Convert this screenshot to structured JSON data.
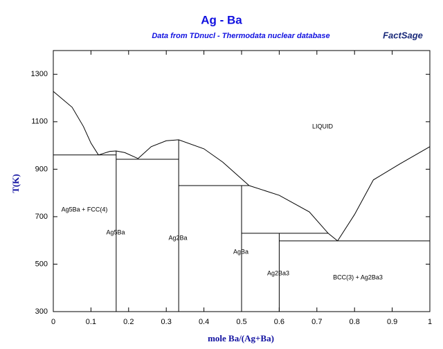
{
  "chart_data": {
    "type": "line",
    "title": "Ag - Ba",
    "subtitle": "Data from TDnucl - Thermodata nuclear database",
    "logo": "FactSage",
    "x_label": "mole Ba/(Ag+Ba)",
    "y_label": "T(K)",
    "xlim": [
      0,
      1
    ],
    "ylim": [
      300,
      1400
    ],
    "xticks": [
      0,
      0.1,
      0.2,
      0.3,
      0.4,
      0.5,
      0.6,
      0.7,
      0.8,
      0.9,
      1
    ],
    "yticks": [
      300,
      500,
      700,
      900,
      1100,
      1300
    ],
    "series": [
      {
        "color": "#000000",
        "x": [
          0,
          0.05,
          0.08,
          0.1,
          0.12
        ],
        "values": [
          1228,
          1161,
          1080,
          1010,
          960
        ]
      },
      {
        "color": "#000000",
        "x": [
          0.12,
          0.15,
          0.167,
          0.19,
          0.225
        ],
        "values": [
          960,
          975,
          977,
          970,
          945
        ]
      },
      {
        "color": "#000000",
        "x": [
          0.225,
          0.26,
          0.3,
          0.333,
          0.4,
          0.45,
          0.52
        ],
        "values": [
          945,
          995,
          1020,
          1024,
          986,
          930,
          831
        ]
      },
      {
        "color": "#000000",
        "x": [
          0.52,
          0.6,
          0.68,
          0.73,
          0.755
        ],
        "values": [
          831,
          790,
          720,
          630,
          598
        ]
      },
      {
        "color": "#000000",
        "x": [
          0.755,
          0.8,
          0.85,
          0.92,
          1
        ],
        "values": [
          598,
          709,
          855,
          922,
          995
        ]
      },
      {
        "color": "#000000",
        "x": [
          0,
          0.167
        ],
        "values": [
          960,
          960
        ]
      },
      {
        "color": "#000000",
        "x": [
          0.167,
          0.333
        ],
        "values": [
          942,
          942
        ]
      },
      {
        "color": "#000000",
        "x": [
          0.333,
          0.52
        ],
        "values": [
          831,
          831
        ]
      },
      {
        "color": "#000000",
        "x": [
          0.5,
          0.73
        ],
        "values": [
          630,
          630
        ]
      },
      {
        "color": "#000000",
        "x": [
          0.6,
          1
        ],
        "values": [
          598,
          598
        ]
      },
      {
        "color": "#000000",
        "x": [
          0.167,
          0.167
        ],
        "values": [
          300,
          977
        ]
      },
      {
        "color": "#000000",
        "x": [
          0.333,
          0.333
        ],
        "values": [
          300,
          1024
        ]
      },
      {
        "color": "#000000",
        "x": [
          0.5,
          0.5
        ],
        "values": [
          300,
          831
        ]
      },
      {
        "color": "#000000",
        "x": [
          0.6,
          0.6
        ],
        "values": [
          300,
          630
        ]
      }
    ],
    "annotations": [
      "LIQUID",
      "Ag5Ba + FCC(4)",
      "Ag5Ba",
      "Ag2Ba",
      "AgBa",
      "Ag2Ba3",
      "BCC(3) + Ag2Ba3"
    ]
  }
}
